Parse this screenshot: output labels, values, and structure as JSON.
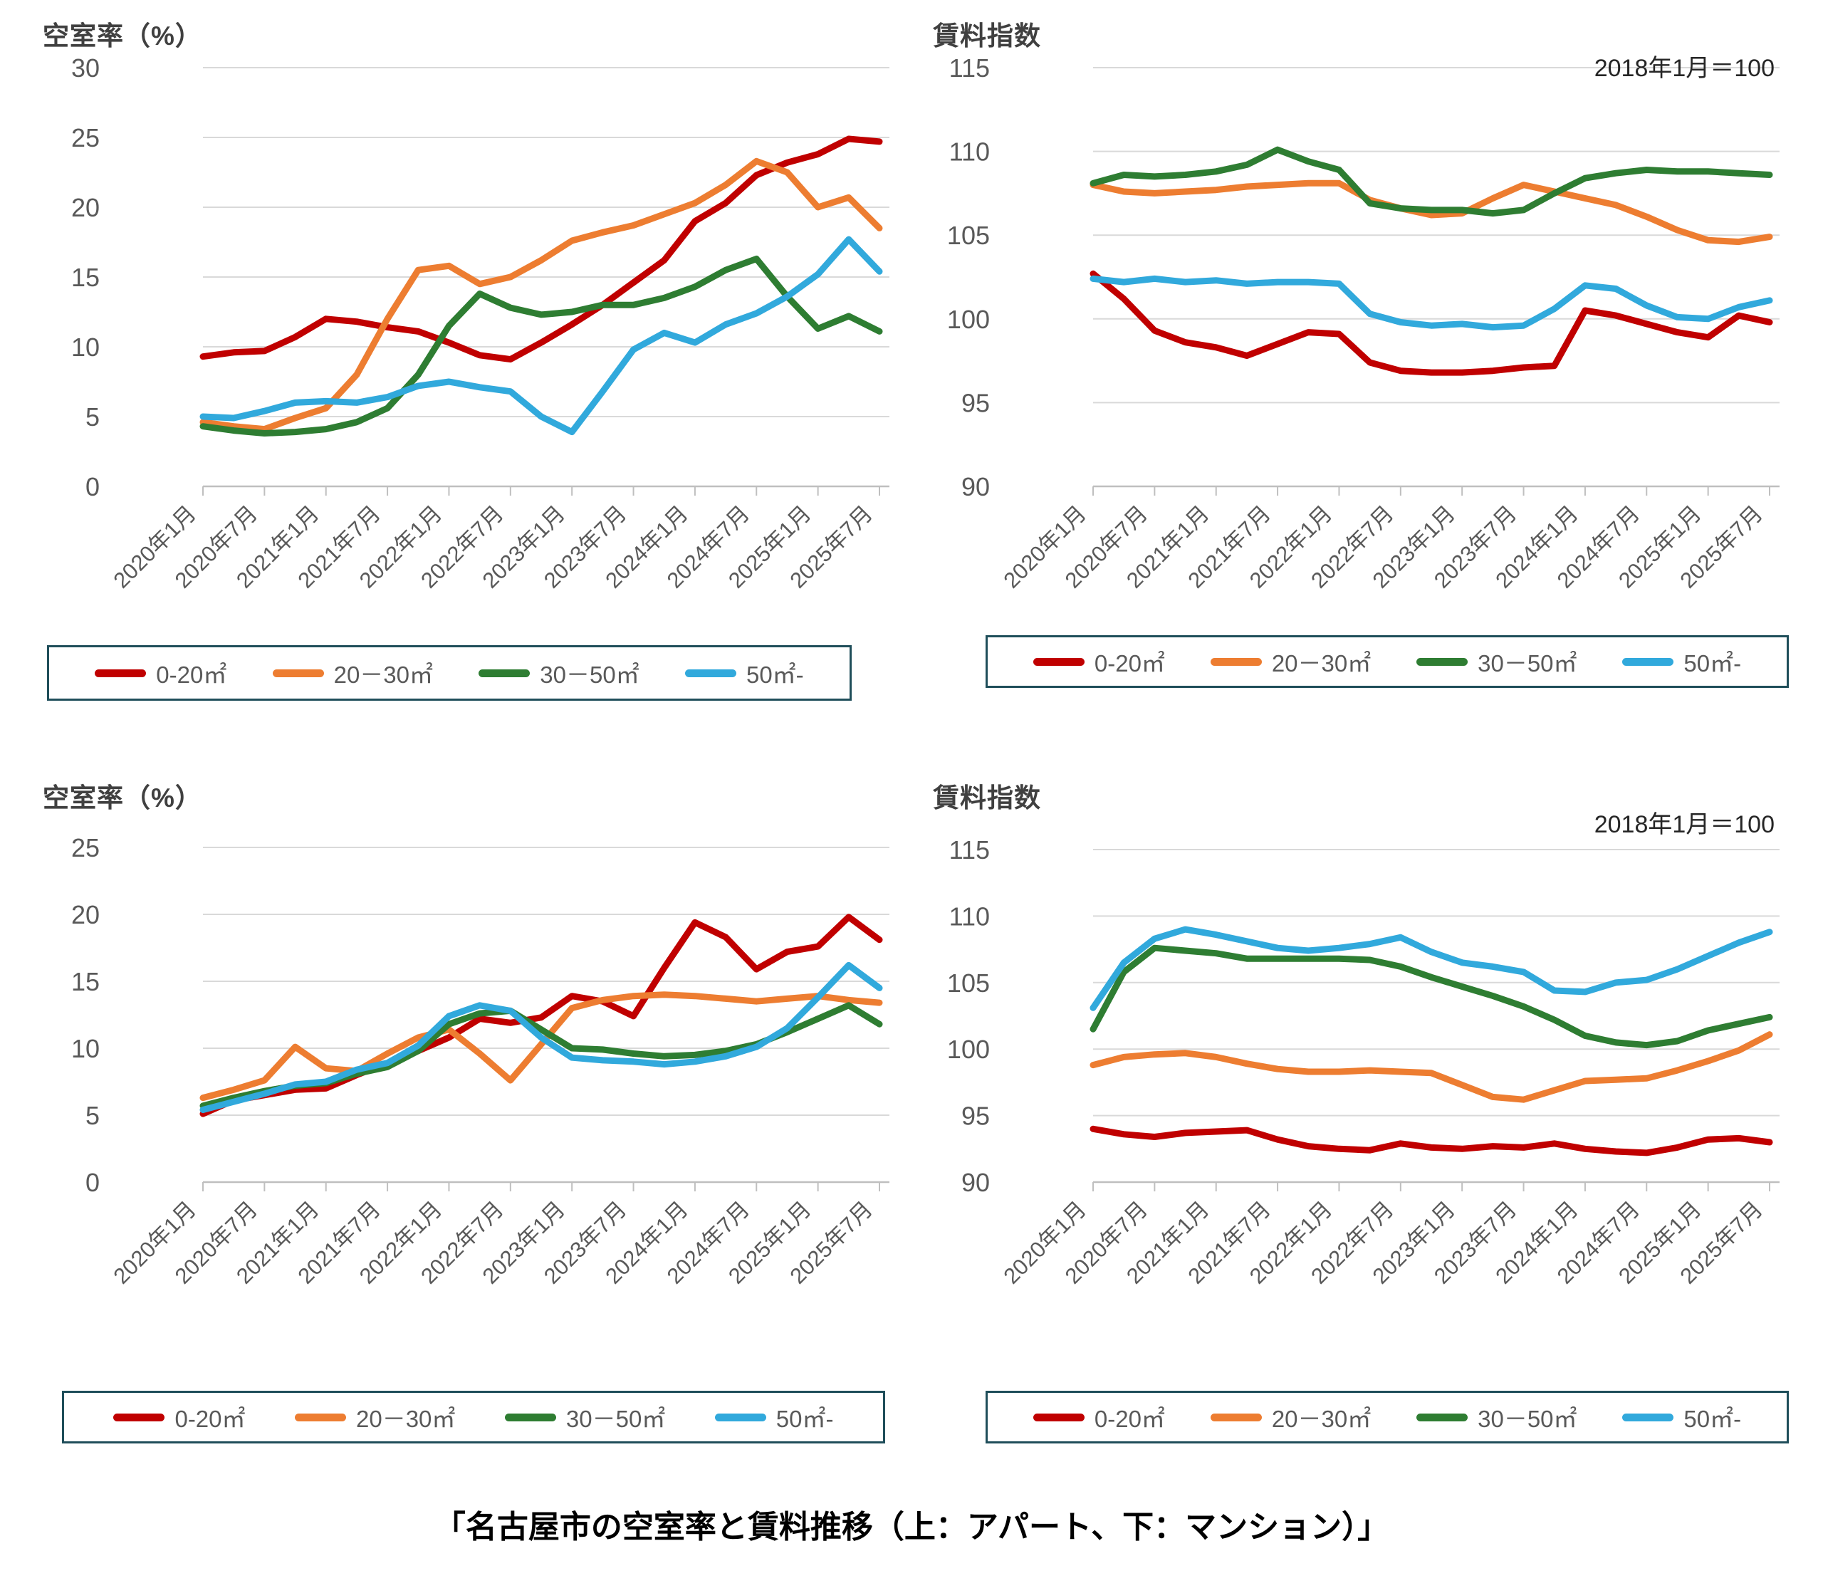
{
  "page": {
    "caption": "「名古屋市の空室率と賃料推移（上：アパート、下：マンション）」"
  },
  "colors": {
    "red": "#c00000",
    "orange": "#ed7d31",
    "green": "#2e7d32",
    "blue": "#31a9dc",
    "grid": "#d9d9d9",
    "axis": "#bfbfbf",
    "tick_label": "#595959",
    "title": "#404040",
    "legend_border": "#1f4e5a"
  },
  "x_axis_tick_labels": [
    "2020年1月",
    "2020年7月",
    "2021年1月",
    "2021年7月",
    "2022年1月",
    "2022年7月",
    "2023年1月",
    "2023年7月",
    "2024年1月",
    "2024年7月",
    "2025年1月",
    "2025年7月"
  ],
  "chart_data": [
    {
      "id": "apartment-vacancy",
      "type": "line",
      "title": "空室率（%）",
      "subtitle": "",
      "group": "アパート",
      "ylim": [
        0,
        30
      ],
      "yticks": [
        0,
        5,
        10,
        15,
        20,
        25,
        30
      ],
      "grid": true,
      "legend_position": "bottom",
      "categories": [
        "2020年1月",
        "2020年4月",
        "2020年7月",
        "2020年10月",
        "2021年1月",
        "2021年4月",
        "2021年7月",
        "2021年10月",
        "2022年1月",
        "2022年4月",
        "2022年7月",
        "2022年10月",
        "2023年1月",
        "2023年4月",
        "2023年7月",
        "2023年10月",
        "2024年1月",
        "2024年4月",
        "2024年7月",
        "2024年10月",
        "2025年1月",
        "2025年4月",
        "2025年7月"
      ],
      "series": [
        {
          "name": "0-20㎡",
          "color": "#c00000",
          "values": [
            9.3,
            9.6,
            9.7,
            10.7,
            12.0,
            11.8,
            11.4,
            11.1,
            10.3,
            9.4,
            9.1,
            10.3,
            11.6,
            13.0,
            14.6,
            16.2,
            19.0,
            20.3,
            22.3,
            23.2,
            23.8,
            24.9,
            24.7
          ]
        },
        {
          "name": "20－30㎡",
          "color": "#ed7d31",
          "values": [
            4.6,
            4.3,
            4.1,
            4.9,
            5.6,
            8.0,
            12.0,
            15.5,
            15.8,
            14.5,
            15.0,
            16.2,
            17.6,
            18.2,
            18.7,
            19.5,
            20.3,
            21.6,
            23.3,
            22.5,
            20.0,
            20.7,
            18.5
          ]
        },
        {
          "name": "30－50㎡",
          "color": "#2e7d32",
          "values": [
            4.3,
            4.0,
            3.8,
            3.9,
            4.1,
            4.6,
            5.6,
            8.0,
            11.5,
            13.8,
            12.8,
            12.3,
            12.5,
            13.0,
            13.0,
            13.5,
            14.3,
            15.5,
            16.3,
            13.6,
            11.3,
            12.2,
            11.1
          ]
        },
        {
          "name": "50㎡-",
          "color": "#31a9dc",
          "values": [
            5.0,
            4.9,
            5.4,
            6.0,
            6.1,
            6.0,
            6.4,
            7.2,
            7.5,
            7.1,
            6.8,
            5.0,
            3.9,
            6.8,
            9.8,
            11.0,
            10.3,
            11.6,
            12.4,
            13.6,
            15.2,
            17.7,
            15.4
          ]
        }
      ]
    },
    {
      "id": "apartment-rent-index",
      "type": "line",
      "title": "賃料指数",
      "subtitle": "2018年1月＝100",
      "group": "アパート",
      "ylim": [
        90,
        115
      ],
      "yticks": [
        90,
        95,
        100,
        105,
        110,
        115
      ],
      "grid": true,
      "legend_position": "bottom",
      "categories": [
        "2020年1月",
        "2020年4月",
        "2020年7月",
        "2020年10月",
        "2021年1月",
        "2021年4月",
        "2021年7月",
        "2021年10月",
        "2022年1月",
        "2022年4月",
        "2022年7月",
        "2022年10月",
        "2023年1月",
        "2023年4月",
        "2023年7月",
        "2023年10月",
        "2024年1月",
        "2024年4月",
        "2024年7月",
        "2024年10月",
        "2025年1月",
        "2025年4月",
        "2025年7月"
      ],
      "series": [
        {
          "name": "0-20㎡",
          "color": "#c00000",
          "values": [
            102.7,
            101.2,
            99.3,
            98.6,
            98.3,
            97.8,
            98.5,
            99.2,
            99.1,
            97.4,
            96.9,
            96.8,
            96.8,
            96.9,
            97.1,
            97.2,
            100.5,
            100.2,
            99.7,
            99.2,
            98.9,
            100.2,
            99.8
          ]
        },
        {
          "name": "20－30㎡",
          "color": "#ed7d31",
          "values": [
            108.0,
            107.6,
            107.5,
            107.6,
            107.7,
            107.9,
            108.0,
            108.1,
            108.1,
            107.1,
            106.6,
            106.2,
            106.3,
            107.2,
            108.0,
            107.6,
            107.2,
            106.8,
            106.1,
            105.3,
            104.7,
            104.6,
            104.9
          ]
        },
        {
          "name": "30－50㎡",
          "color": "#2e7d32",
          "values": [
            108.1,
            108.6,
            108.5,
            108.6,
            108.8,
            109.2,
            110.1,
            109.4,
            108.9,
            106.9,
            106.6,
            106.5,
            106.5,
            106.3,
            106.5,
            107.5,
            108.4,
            108.7,
            108.9,
            108.8,
            108.8,
            108.7,
            108.6
          ]
        },
        {
          "name": "50㎡-",
          "color": "#31a9dc",
          "values": [
            102.4,
            102.2,
            102.4,
            102.2,
            102.3,
            102.1,
            102.2,
            102.2,
            102.1,
            100.3,
            99.8,
            99.6,
            99.7,
            99.5,
            99.6,
            100.6,
            102.0,
            101.8,
            100.8,
            100.1,
            100.0,
            100.7,
            101.1
          ]
        }
      ]
    },
    {
      "id": "mansion-vacancy",
      "type": "line",
      "title": "空室率（%）",
      "subtitle": "",
      "group": "マンション",
      "ylim": [
        0,
        25
      ],
      "yticks": [
        0,
        5,
        10,
        15,
        20,
        25
      ],
      "grid": true,
      "legend_position": "bottom",
      "categories": [
        "2020年1月",
        "2020年4月",
        "2020年7月",
        "2020年10月",
        "2021年1月",
        "2021年4月",
        "2021年7月",
        "2021年10月",
        "2022年1月",
        "2022年4月",
        "2022年7月",
        "2022年10月",
        "2023年1月",
        "2023年4月",
        "2023年7月",
        "2023年10月",
        "2024年1月",
        "2024年4月",
        "2024年7月",
        "2024年10月",
        "2025年1月",
        "2025年4月",
        "2025年7月"
      ],
      "series": [
        {
          "name": "0-20㎡",
          "color": "#c00000",
          "values": [
            5.1,
            6.1,
            6.5,
            6.9,
            7.0,
            8.0,
            8.9,
            9.8,
            10.8,
            12.2,
            11.9,
            12.3,
            13.9,
            13.5,
            12.4,
            16.0,
            19.4,
            18.3,
            15.9,
            17.2,
            17.6,
            19.8,
            18.1
          ]
        },
        {
          "name": "20－30㎡",
          "color": "#ed7d31",
          "values": [
            6.3,
            6.9,
            7.6,
            10.1,
            8.5,
            8.3,
            9.6,
            10.8,
            11.4,
            9.6,
            7.6,
            10.3,
            13.0,
            13.6,
            13.9,
            14.0,
            13.9,
            13.7,
            13.5,
            13.7,
            13.9,
            13.6,
            13.4
          ]
        },
        {
          "name": "30－50㎡",
          "color": "#2e7d32",
          "values": [
            5.7,
            6.3,
            6.8,
            7.2,
            7.4,
            8.1,
            8.6,
            9.8,
            11.8,
            12.6,
            12.8,
            11.4,
            10.0,
            9.9,
            9.6,
            9.4,
            9.5,
            9.8,
            10.3,
            11.2,
            12.2,
            13.2,
            11.8
          ]
        },
        {
          "name": "50㎡-",
          "color": "#31a9dc",
          "values": [
            5.4,
            6.0,
            6.6,
            7.3,
            7.5,
            8.4,
            8.9,
            10.2,
            12.4,
            13.2,
            12.8,
            10.8,
            9.3,
            9.1,
            9.0,
            8.8,
            9.0,
            9.4,
            10.1,
            11.5,
            13.8,
            16.2,
            14.5
          ]
        }
      ]
    },
    {
      "id": "mansion-rent-index",
      "type": "line",
      "title": "賃料指数",
      "subtitle": "2018年1月＝100",
      "group": "マンション",
      "ylim": [
        90,
        115
      ],
      "yticks": [
        90,
        95,
        100,
        105,
        110,
        115
      ],
      "grid": true,
      "legend_position": "bottom",
      "categories": [
        "2020年1月",
        "2020年4月",
        "2020年7月",
        "2020年10月",
        "2021年1月",
        "2021年4月",
        "2021年7月",
        "2021年10月",
        "2022年1月",
        "2022年4月",
        "2022年7月",
        "2022年10月",
        "2023年1月",
        "2023年4月",
        "2023年7月",
        "2023年10月",
        "2024年1月",
        "2024年4月",
        "2024年7月",
        "2024年10月",
        "2025年1月",
        "2025年4月",
        "2025年7月"
      ],
      "series": [
        {
          "name": "0-20㎡",
          "color": "#c00000",
          "values": [
            94.0,
            93.6,
            93.4,
            93.7,
            93.8,
            93.9,
            93.2,
            92.7,
            92.5,
            92.4,
            92.9,
            92.6,
            92.5,
            92.7,
            92.6,
            92.9,
            92.5,
            92.3,
            92.2,
            92.6,
            93.2,
            93.3,
            93.0
          ]
        },
        {
          "name": "20－30㎡",
          "color": "#ed7d31",
          "values": [
            98.8,
            99.4,
            99.6,
            99.7,
            99.4,
            98.9,
            98.5,
            98.3,
            98.3,
            98.4,
            98.3,
            98.2,
            97.3,
            96.4,
            96.2,
            96.9,
            97.6,
            97.7,
            97.8,
            98.4,
            99.1,
            99.9,
            101.1
          ]
        },
        {
          "name": "30－50㎡",
          "color": "#2e7d32",
          "values": [
            101.5,
            105.8,
            107.6,
            107.4,
            107.2,
            106.8,
            106.8,
            106.8,
            106.8,
            106.7,
            106.2,
            105.4,
            104.7,
            104.0,
            103.2,
            102.2,
            101.0,
            100.5,
            100.3,
            100.6,
            101.4,
            101.9,
            102.4
          ]
        },
        {
          "name": "50㎡-",
          "color": "#31a9dc",
          "values": [
            103.1,
            106.5,
            108.3,
            109.0,
            108.6,
            108.1,
            107.6,
            107.4,
            107.6,
            107.9,
            108.4,
            107.3,
            106.5,
            106.2,
            105.8,
            104.4,
            104.3,
            105.0,
            105.2,
            106.0,
            107.0,
            108.0,
            108.8
          ]
        }
      ]
    }
  ]
}
